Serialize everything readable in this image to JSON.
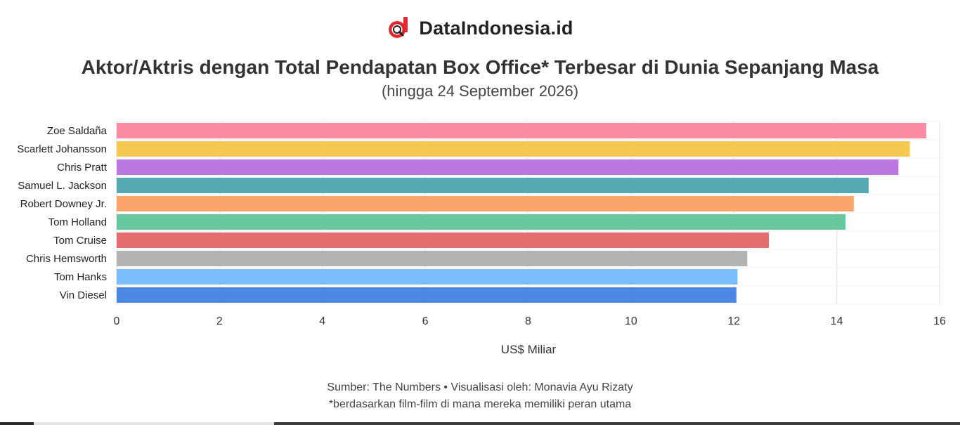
{
  "brand": {
    "name": "DataIndonesia.id",
    "logo_icon": "d-magnifier-logo-icon",
    "logo_color": "#e0282e"
  },
  "header": {
    "title": "Aktor/Aktris dengan Total Pendapatan Box Office* Terbesar di Dunia Sepanjang Masa",
    "subtitle": "(hingga 24 September 2026)"
  },
  "chart_data": {
    "type": "bar",
    "orientation": "horizontal",
    "categories": [
      "Zoe Saldaña",
      "Scarlett Johansson",
      "Chris Pratt",
      "Samuel L. Jackson",
      "Robert Downey Jr.",
      "Tom Holland",
      "Tom Cruise",
      "Chris Hemsworth",
      "Tom Hanks",
      "Vin Diesel"
    ],
    "values": [
      15.74,
      15.42,
      15.2,
      14.62,
      14.33,
      14.17,
      12.68,
      12.26,
      12.07,
      12.05
    ],
    "colors": [
      "#fc8aa3",
      "#f5c850",
      "#bb78e0",
      "#54a9b2",
      "#fba56c",
      "#68c99f",
      "#e46e6e",
      "#b0b2b4",
      "#7bbcfa",
      "#4d87e4"
    ],
    "xlabel": "US$ Miliar",
    "ylabel": "",
    "xlim": [
      0,
      16
    ],
    "xticks": [
      0,
      2,
      4,
      6,
      8,
      10,
      12,
      14,
      16
    ],
    "grid": true,
    "legend": "none"
  },
  "footer": {
    "source": "Sumber: The Numbers • Visualisasi oleh: Monavia Ayu Rizaty",
    "note": "*berdasarkan film-film di mana mereka memiliki peran utama"
  }
}
